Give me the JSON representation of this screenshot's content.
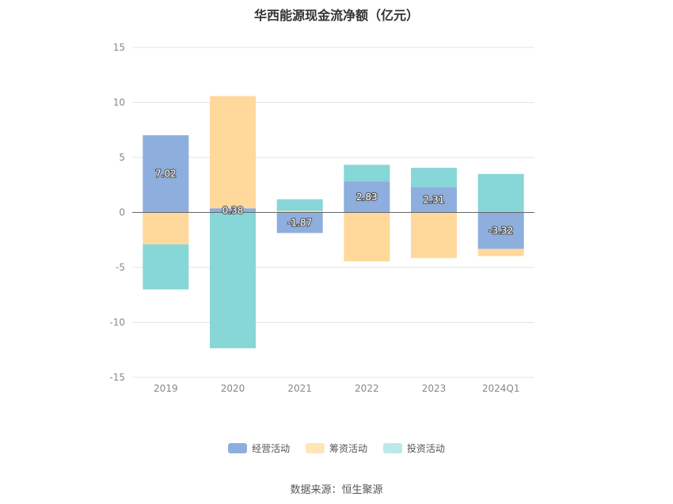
{
  "chart_data": {
    "type": "bar",
    "stacked": true,
    "title": "华西能源现金流净额（亿元）",
    "categories": [
      "2019",
      "2020",
      "2021",
      "2022",
      "2023",
      "2024Q1"
    ],
    "ylim": [
      -15,
      15
    ],
    "yticks": [
      15,
      10,
      5,
      0,
      -5,
      -10,
      -15
    ],
    "grid": true,
    "legend_position": "bottom",
    "series": [
      {
        "name": "经营活动",
        "color": "#8eaedd",
        "values": [
          7.02,
          0.38,
          -1.87,
          2.83,
          2.31,
          -3.32
        ],
        "labeled": true
      },
      {
        "name": "筹资活动",
        "color": "#ffd99b",
        "values": [
          -2.9,
          10.2,
          0.15,
          -4.45,
          -4.15,
          -0.65
        ],
        "labeled": false
      },
      {
        "name": "投资活动",
        "color": "#87d6d8",
        "values": [
          -4.1,
          -12.35,
          1.05,
          1.5,
          1.75,
          3.5
        ],
        "labeled": false
      }
    ]
  },
  "legend": {
    "items": [
      {
        "label": "经营活动",
        "color": "#8eaedd"
      },
      {
        "label": "筹资活动",
        "color": "#ffe6b8"
      },
      {
        "label": "投资活动",
        "color": "#bde8ea"
      }
    ]
  },
  "source": "数据来源：恒生聚源"
}
